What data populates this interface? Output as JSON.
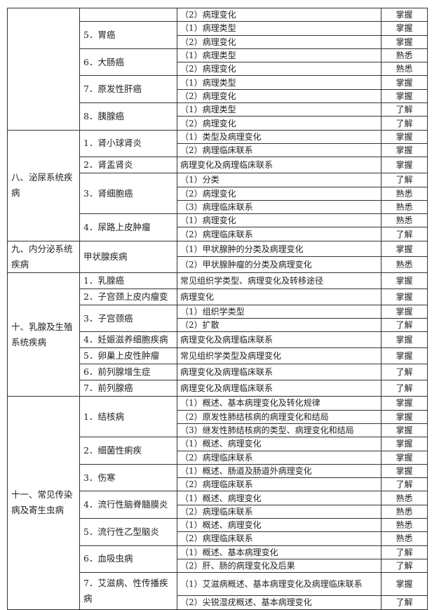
{
  "sections": [
    {
      "title": "",
      "topics": [
        {
          "name": "",
          "items": [
            {
              "content": "（2）病理变化",
              "level": "掌握"
            }
          ]
        },
        {
          "name": "5．胃癌",
          "items": [
            {
              "content": "（1）病理类型",
              "level": "掌握"
            },
            {
              "content": "（2）病理变化",
              "level": "掌握"
            }
          ]
        },
        {
          "name": "6．大肠癌",
          "items": [
            {
              "content": "（1）病理类型",
              "level": "熟悉"
            },
            {
              "content": "（2）病理变化",
              "level": "熟悉"
            }
          ]
        },
        {
          "name": "7．原发性肝癌",
          "items": [
            {
              "content": "（1）病理类型",
              "level": "掌握"
            },
            {
              "content": "（2）病理变化",
              "level": "掌握"
            }
          ]
        },
        {
          "name": "8．胰腺癌",
          "items": [
            {
              "content": "（1）病理类型",
              "level": "了解"
            },
            {
              "content": "（2）病理变化",
              "level": "了解"
            }
          ]
        }
      ]
    },
    {
      "title": "八、泌尿系统疾病",
      "topics": [
        {
          "name": "1．肾小球肾炎",
          "items": [
            {
              "content": "（1）类型及病理变化",
              "level": "掌握"
            },
            {
              "content": "（2）病理临床联系",
              "level": "掌握"
            }
          ]
        },
        {
          "name": "2．肾盂肾炎",
          "items": [
            {
              "content": "病理变化及病理临床联系",
              "level": "掌握"
            }
          ]
        },
        {
          "name": "3．肾细胞癌",
          "items": [
            {
              "content": "（1）分类",
              "level": "了解"
            },
            {
              "content": "（2）病理变化",
              "level": "熟悉"
            },
            {
              "content": "（3）病理临床联系",
              "level": "熟悉"
            }
          ]
        },
        {
          "name": "4．尿路上皮肿瘤",
          "items": [
            {
              "content": "（1）病理变化",
              "level": "熟悉"
            },
            {
              "content": "（2）病理临床联系",
              "level": "了解"
            }
          ]
        }
      ]
    },
    {
      "title": "九、内分泌系统疾病",
      "topics": [
        {
          "name": "甲状腺疾病",
          "items": [
            {
              "content": "（1）甲状腺肿的分类及病理变化",
              "level": "掌握"
            },
            {
              "content": "（2）甲状腺肿瘤的分类及病理变化",
              "level": "熟悉"
            }
          ]
        }
      ]
    },
    {
      "title": "十、乳腺及生殖系统疾病",
      "topics": [
        {
          "name": "1．乳腺癌",
          "items": [
            {
              "content": "常见组织学类型、病理变化及转移途径",
              "level": "掌握"
            }
          ]
        },
        {
          "name": "2．子宫颈上皮内瘤变",
          "items": [
            {
              "content": "病理变化",
              "level": "掌握"
            }
          ]
        },
        {
          "name": "3．子宫颈癌",
          "items": [
            {
              "content": "（1）组织学类型",
              "level": "掌握"
            },
            {
              "content": "（2）扩散",
              "level": "了解"
            }
          ]
        },
        {
          "name": "4．妊娠滋养细胞疾病",
          "items": [
            {
              "content": "病理变化及病理临床联系",
              "level": "掌握"
            }
          ]
        },
        {
          "name": "5．卵巢上皮性肿瘤",
          "items": [
            {
              "content": "常见组织学类型及病理变化",
              "level": "掌握"
            }
          ]
        },
        {
          "name": "6．前列腺增生症",
          "items": [
            {
              "content": "病理变化及病理临床联系",
              "level": "了解"
            }
          ]
        },
        {
          "name": "7．前列腺癌",
          "items": [
            {
              "content": "病理变化及病理临床联系",
              "level": "了解"
            }
          ]
        }
      ]
    },
    {
      "title": "十一、常见传染病及寄生虫病",
      "topics": [
        {
          "name": "1．结核病",
          "items": [
            {
              "content": "（1）概述、基本病理变化及转化规律",
              "level": "掌握"
            },
            {
              "content": "（2）原发性肺结核病的病理变化和结局",
              "level": "掌握"
            },
            {
              "content": "（3）继发性肺结核病的类型、病理变化和结局",
              "level": "掌握"
            }
          ]
        },
        {
          "name": "2．细菌性痢疾",
          "items": [
            {
              "content": "（1）概述、病理变化",
              "level": "掌握"
            },
            {
              "content": "（2）病理临床联系",
              "level": "掌握"
            }
          ]
        },
        {
          "name": "3．伤寒",
          "items": [
            {
              "content": "（1）概述、肠道及肠道外病理变化",
              "level": "掌握"
            },
            {
              "content": "（2）病理临床联系",
              "level": "了解"
            }
          ]
        },
        {
          "name": "4．流行性脑脊髓膜炎",
          "items": [
            {
              "content": "（1）概述、病理变化",
              "level": "熟悉"
            },
            {
              "content": "（2）病理临床联系",
              "level": "熟悉"
            }
          ]
        },
        {
          "name": "5．流行性乙型脑炎",
          "items": [
            {
              "content": "（1）概述、病理变化",
              "level": "熟悉"
            },
            {
              "content": "（2）病理临床联系",
              "level": "熟悉"
            }
          ]
        },
        {
          "name": "6．血吸虫病",
          "items": [
            {
              "content": "（1）概述、基本病理变化",
              "level": "了解"
            },
            {
              "content": "（2）肝、肠的病理变化及后果",
              "level": "了解"
            }
          ]
        },
        {
          "name": "7．艾滋病、性传播疾病",
          "items": [
            {
              "content": "（1）艾滋病概述、基本病理变化及病理临床联系",
              "level": "掌握",
              "tall": true
            },
            {
              "content": "（2）尖锐湿疣概述、基本病理变化",
              "level": "了解"
            }
          ]
        }
      ]
    }
  ]
}
